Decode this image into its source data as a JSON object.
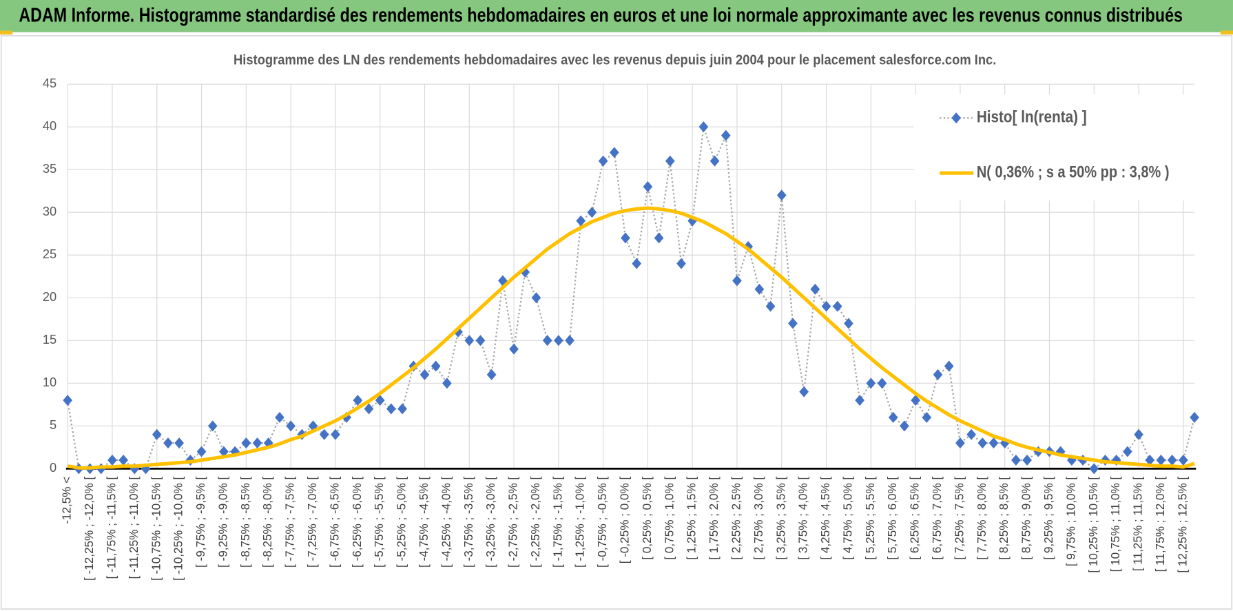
{
  "header": {
    "title": "ADAM Informe. Histogramme standardisé des rendements hebdomadaires en euros et une loi normale approximante avec les revenus connus distribués"
  },
  "chart_data": {
    "type": "line",
    "title": "Histogramme  des LN des rendements hebdomadaires avec les revenus depuis juin 2004 pour le placement salesforce.com Inc.",
    "categories": [
      "-12,5% <",
      null,
      "[ -12,25% ; -12,0% [",
      null,
      "[ -11,75% ; -11,5% [",
      null,
      "[ -11,25% ; -11,0% [",
      null,
      "[ -10,75% ; -10,5% [",
      null,
      "[ -10,25% ; -10,0% [",
      null,
      "[ -9,75% ; -9,5% [",
      null,
      "[ -9,25% ; -9,0% [",
      null,
      "[ -8,75% ; -8,5% [",
      null,
      "[ -8,25% ; -8,0% [",
      null,
      "[ -7,75% ; -7,5% [",
      null,
      "[ -7,25% ; -7,0% [",
      null,
      "[ -6,75% ; -6,5% [",
      null,
      "[ -6,25% ; -6,0% [",
      null,
      "[ -5,75% ; -5,5% [",
      null,
      "[ -5,25% ; -5,0% [",
      null,
      "[ -4,75% ; -4,5% [",
      null,
      "[ -4,25% ; -4,0% [",
      null,
      "[ -3,75% ; -3,5% [",
      null,
      "[ -3,25% ; -3,0% [",
      null,
      "[ -2,75% ; -2,5% [",
      null,
      "[ -2,25% ; -2,0% [",
      null,
      "[ -1,75% ; -1,5% [",
      null,
      "[ -1,25% ; -1,0% [",
      null,
      "[ -0,75% ; -0,5% [",
      null,
      "[ -0,25% ; 0,0% [",
      null,
      "[ 0,25% ; 0,5% [",
      null,
      "[ 0,75% ; 1,0% [",
      null,
      "[ 1,25% ; 1,5% [",
      null,
      "[ 1,75% ; 2,0% [",
      null,
      "[ 2,25% ; 2,5% [",
      null,
      "[ 2,75% ; 3,0% [",
      null,
      "[ 3,25% ; 3,5% [",
      null,
      "[ 3,75% ; 4,0% [",
      null,
      "[ 4,25% ; 4,5% [",
      null,
      "[ 4,75% ; 5,0% [",
      null,
      "[ 5,25% ; 5,5% [",
      null,
      "[ 5,75% ; 6,0% [",
      null,
      "[ 6,25% ; 6,5% [",
      null,
      "[ 6,75% ; 7,0% [",
      null,
      "[ 7,25% ; 7,5% [",
      null,
      "[ 7,75% ; 8,0% [",
      null,
      "[ 8,25% ; 8,5% [",
      null,
      "[ 8,75% ; 9,0% [",
      null,
      "[ 9,25% ; 9,5% [",
      null,
      "[ 9,75% ; 10,0% [",
      null,
      "[ 10,25% ; 10,5% [",
      null,
      "[ 10,75% ; 11,0% [",
      null,
      "[ 11,25% ; 11,5% [",
      null,
      "[ 11,75% ; 12,0% [",
      null,
      "[ 12,25% ; 12,5% [",
      null
    ],
    "series": [
      {
        "name": "Histo[ ln(renta) ]",
        "color": "#4472c4",
        "line_color": "#a5a5a5",
        "line_style": "dotted",
        "marker": "diamond",
        "values": [
          8,
          0,
          0,
          0,
          1,
          1,
          0,
          0,
          4,
          3,
          3,
          1,
          2,
          5,
          2,
          2,
          3,
          3,
          3,
          6,
          5,
          4,
          5,
          4,
          4,
          6,
          8,
          7,
          8,
          7,
          7,
          12,
          11,
          12,
          10,
          16,
          15,
          15,
          11,
          22,
          14,
          23,
          20,
          15,
          15,
          15,
          29,
          30,
          36,
          37,
          27,
          24,
          33,
          27,
          36,
          24,
          29,
          40,
          36,
          39,
          22,
          26,
          21,
          19,
          32,
          17,
          9,
          21,
          19,
          19,
          17,
          8,
          10,
          10,
          6,
          5,
          8,
          6,
          11,
          12,
          3,
          4,
          3,
          3,
          3,
          1,
          1,
          2,
          2,
          2,
          1,
          1,
          0,
          1,
          1,
          2,
          4,
          1,
          1,
          1,
          1,
          6
        ]
      },
      {
        "name": "N( 0,36% ; s a 50% pp : 3,8% )",
        "color": "#ffc000",
        "line_style": "solid",
        "marker": "none",
        "values": [
          0.3,
          0.1,
          0.1,
          0.2,
          0.2,
          0.3,
          0.3,
          0.4,
          0.5,
          0.6,
          0.7,
          0.8,
          1.0,
          1.2,
          1.4,
          1.6,
          1.9,
          2.2,
          2.5,
          2.9,
          3.4,
          3.8,
          4.4,
          5.0,
          5.6,
          6.3,
          7.1,
          7.9,
          8.8,
          9.8,
          10.8,
          11.8,
          12.9,
          14.0,
          15.2,
          16.4,
          17.6,
          18.8,
          20.0,
          21.2,
          22.4,
          23.5,
          24.6,
          25.7,
          26.6,
          27.5,
          28.2,
          28.9,
          29.4,
          29.9,
          30.2,
          30.4,
          30.5,
          30.4,
          30.2,
          29.9,
          29.4,
          28.9,
          28.2,
          27.5,
          26.6,
          25.7,
          24.6,
          23.5,
          22.4,
          21.2,
          20.0,
          18.8,
          17.6,
          16.4,
          15.2,
          14.0,
          12.9,
          11.8,
          10.8,
          9.8,
          8.8,
          7.9,
          7.1,
          6.3,
          5.6,
          5.0,
          4.4,
          3.8,
          3.4,
          2.9,
          2.5,
          2.2,
          1.9,
          1.6,
          1.4,
          1.2,
          1.0,
          0.8,
          0.7,
          0.6,
          0.5,
          0.4,
          0.3,
          0.3,
          0.2,
          0.6
        ]
      }
    ],
    "ylim": [
      0,
      45
    ],
    "yticks": [
      0,
      5,
      10,
      15,
      20,
      25,
      30,
      35,
      40,
      45
    ],
    "grid": true,
    "legend_position": "top-right"
  }
}
